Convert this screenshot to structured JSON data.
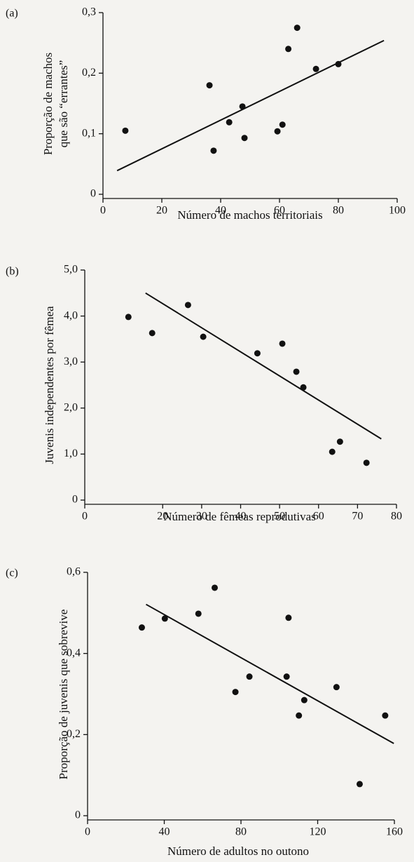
{
  "chart_data": [
    {
      "type": "scatter",
      "panel": "(a)",
      "color": "#111111",
      "x": [
        7.6,
        36.2,
        37.6,
        42.9,
        48.1,
        47.4,
        59.3,
        61,
        63,
        66,
        72.4,
        80
      ],
      "values": [
        0.105,
        0.18,
        0.072,
        0.119,
        0.093,
        0.145,
        0.104,
        0.115,
        0.24,
        0.275,
        0.207,
        0.215
      ],
      "fit": {
        "x": [
          4.8,
          95.5
        ],
        "values": [
          0.039,
          0.254
        ]
      },
      "xlabel": "Número de machos territoriais",
      "ylabel": [
        "Proporção de machos",
        "que são “errantes”"
      ],
      "xlim": [
        0,
        100
      ],
      "xticks": [
        0,
        20,
        40,
        60,
        80,
        100
      ],
      "ylim": [
        0,
        0.3
      ],
      "yticks": [
        0,
        {
          "value": 0.1,
          "label": "0,1"
        },
        {
          "value": 0.2,
          "label": "0,2"
        },
        {
          "value": 0.3,
          "label": "0,3"
        }
      ]
    },
    {
      "type": "scatter",
      "panel": "(b)",
      "color": "#111111",
      "x": [
        11.2,
        17.3,
        26.5,
        30.4,
        44.3,
        50.7,
        54.3,
        56.1,
        63.5,
        65.5,
        72.3
      ],
      "values": [
        3.98,
        3.63,
        4.24,
        3.55,
        3.19,
        3.4,
        2.79,
        2.45,
        1.05,
        1.27,
        0.81
      ],
      "fit": {
        "x": [
          15.6,
          76.1
        ],
        "values": [
          4.5,
          1.33
        ]
      },
      "xlabel": "Número de fêmeas reprodutivas",
      "ylabel": [
        "Juvenis independentes por fêmea"
      ],
      "xlim": [
        0,
        80
      ],
      "xticks": [
        0,
        20,
        30,
        40,
        50,
        60,
        70,
        80
      ],
      "ylim": [
        0,
        5
      ],
      "yticks": [
        0,
        {
          "value": 1,
          "label": "1,0"
        },
        {
          "value": 2,
          "label": "2,0"
        },
        {
          "value": 3,
          "label": "3,0"
        },
        {
          "value": 4,
          "label": "4,0"
        },
        {
          "value": 5,
          "label": "5,0"
        }
      ]
    },
    {
      "type": "scatter",
      "panel": "(c)",
      "color": "#111111",
      "x": [
        28.3,
        40.3,
        57.8,
        66.3,
        77.1,
        84.4,
        103.8,
        104.8,
        113,
        110.2,
        129.8,
        141.9,
        155.2
      ],
      "values": [
        0.464,
        0.486,
        0.498,
        0.562,
        0.305,
        0.343,
        0.343,
        0.488,
        0.285,
        0.247,
        0.317,
        0.078,
        0.247
      ],
      "fit": {
        "x": [
          30.5,
          159.7
        ],
        "values": [
          0.521,
          0.178
        ]
      },
      "xlabel": "Número de adultos no outono",
      "ylabel": [
        "Proporção de juvenis que sobrevive"
      ],
      "xlim": [
        0,
        160
      ],
      "xticks": [
        0,
        40,
        80,
        120,
        160
      ],
      "ylim": [
        0,
        0.6
      ],
      "yticks": [
        0,
        {
          "value": 0.2,
          "label": "0,2"
        },
        {
          "value": 0.4,
          "label": "0,4"
        },
        {
          "value": 0.6,
          "label": "0,6"
        }
      ]
    }
  ]
}
